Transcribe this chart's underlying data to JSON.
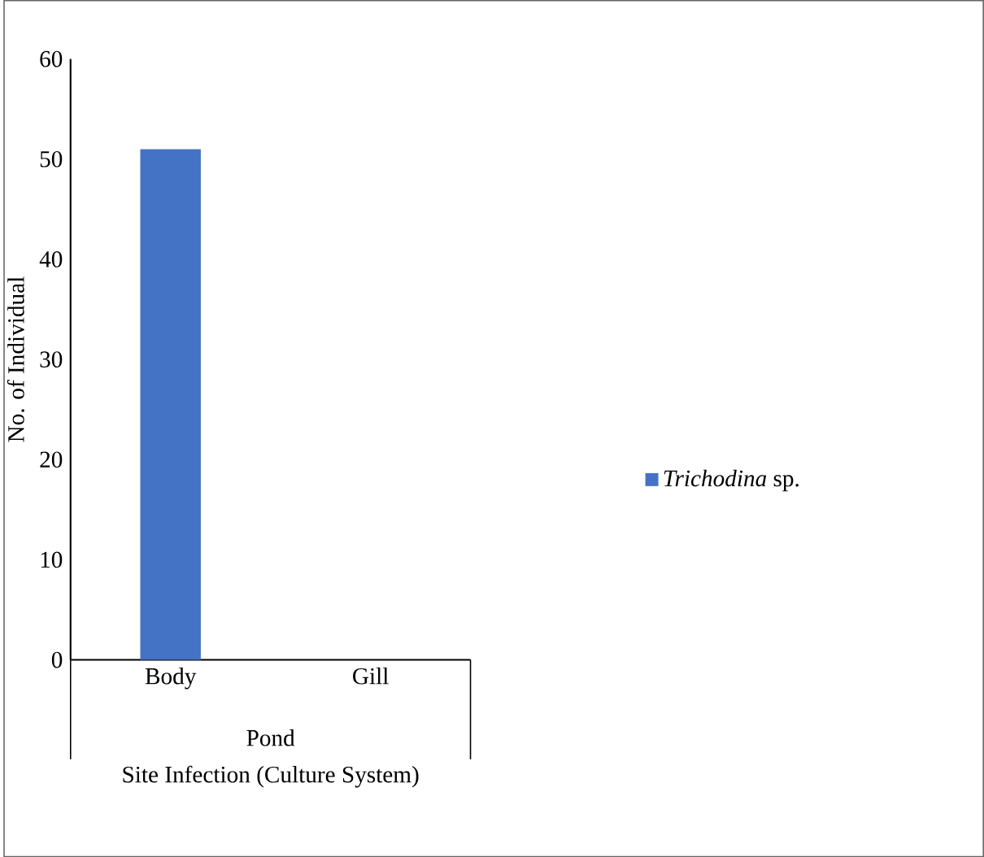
{
  "chart_data": {
    "type": "bar",
    "categories": [
      "Body",
      "Gill"
    ],
    "series": [
      {
        "name": "*Trichodina* sp.",
        "color": "#4472c4",
        "values": [
          51,
          0
        ]
      }
    ],
    "ylim": [
      0,
      60
    ],
    "yticks": [
      0,
      10,
      20,
      30,
      40,
      50,
      60
    ],
    "xlabel": "Site Infection (Culture System)",
    "ylabel": "No. of Individual",
    "annotations": [
      "Pond"
    ],
    "legend": "right"
  }
}
